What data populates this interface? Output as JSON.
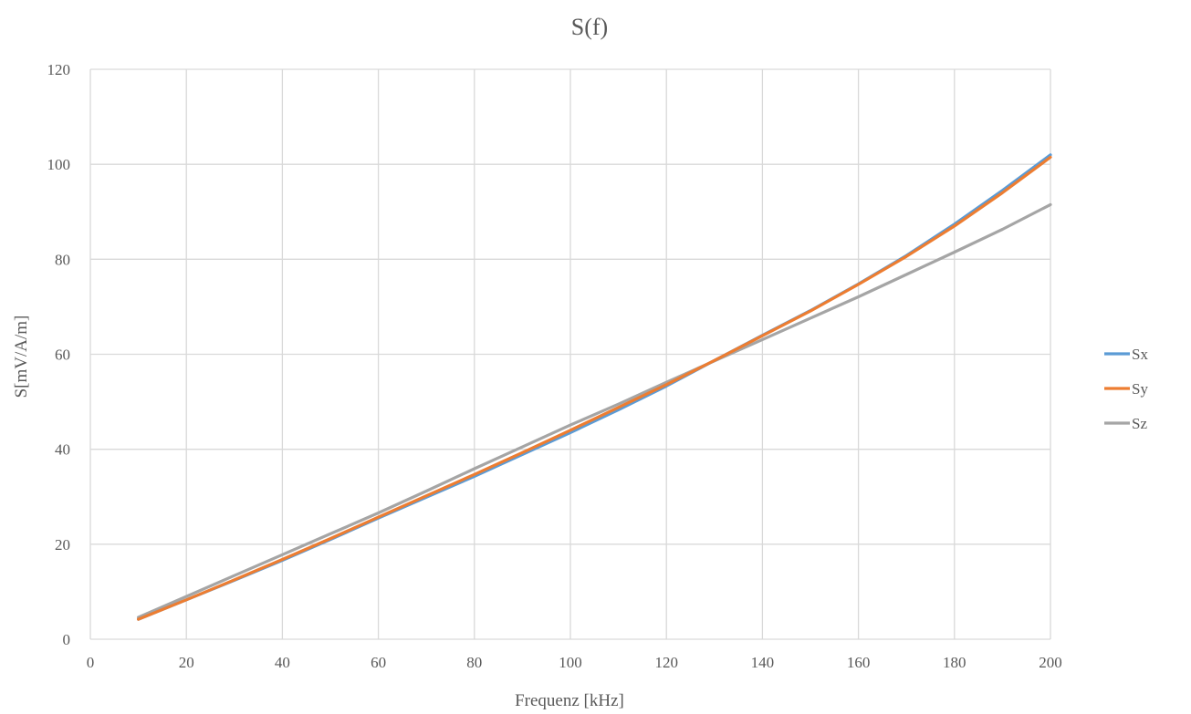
{
  "chart_data": {
    "type": "line",
    "title": "S(f)",
    "xlabel": "Frequenz [kHz]",
    "ylabel": "S[mV/A/m]",
    "xlim": [
      0,
      200
    ],
    "ylim": [
      0,
      120
    ],
    "x_ticks": [
      0,
      20,
      40,
      60,
      80,
      100,
      120,
      140,
      160,
      180,
      200
    ],
    "y_ticks": [
      0,
      20,
      40,
      60,
      80,
      100,
      120
    ],
    "x_tick_labels": [
      "0",
      "20",
      "40",
      "60",
      "80",
      "100",
      "120",
      "140",
      "160",
      "180",
      "200"
    ],
    "y_tick_labels": [
      "0",
      "20",
      "40",
      "60",
      "80",
      "100",
      "120"
    ],
    "grid": true,
    "legend_position": "right",
    "x": [
      10,
      20,
      30,
      40,
      50,
      60,
      70,
      80,
      90,
      100,
      110,
      120,
      130,
      140,
      150,
      160,
      170,
      180,
      190,
      200
    ],
    "series": [
      {
        "name": "Sx",
        "color": "#5b9bd5",
        "values": [
          4.2,
          8.3,
          12.4,
          16.6,
          21.0,
          25.5,
          29.9,
          34.3,
          38.9,
          43.5,
          48.3,
          53.3,
          58.7,
          64.0,
          69.2,
          74.8,
          80.8,
          87.4,
          94.5,
          102.0
        ]
      },
      {
        "name": "Sy",
        "color": "#ed7d31",
        "values": [
          4.2,
          8.3,
          12.5,
          16.8,
          21.2,
          25.7,
          30.2,
          34.7,
          39.3,
          44.0,
          48.8,
          53.6,
          58.7,
          63.9,
          69.1,
          74.7,
          80.6,
          87.0,
          94.0,
          101.5
        ]
      },
      {
        "name": "Sz",
        "color": "#a5a5a5",
        "values": [
          4.6,
          9.0,
          13.4,
          17.8,
          22.2,
          26.6,
          31.2,
          35.9,
          40.5,
          45.1,
          49.5,
          54.1,
          58.6,
          63.1,
          67.6,
          72.1,
          76.8,
          81.5,
          86.3,
          91.5
        ]
      }
    ]
  }
}
